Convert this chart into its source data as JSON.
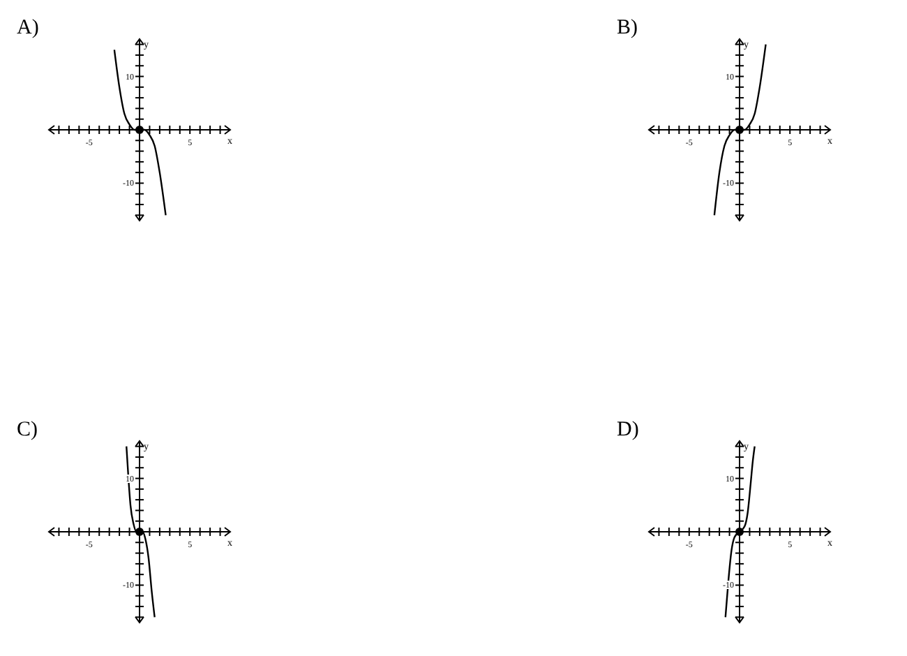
{
  "chart_data": [
    {
      "type": "line",
      "title": "A)",
      "xlabel": "x",
      "ylabel": "y",
      "xlim": [
        -9,
        9
      ],
      "ylim": [
        -17,
        17
      ],
      "xticks": [
        {
          "value": -8,
          "label": null
        },
        {
          "value": -7,
          "label": null
        },
        {
          "value": -6,
          "label": null
        },
        {
          "value": -5,
          "label": "-5"
        },
        {
          "value": -4,
          "label": null
        },
        {
          "value": -3,
          "label": null
        },
        {
          "value": -2,
          "label": null
        },
        {
          "value": -1,
          "label": null
        },
        {
          "value": 1,
          "label": null
        },
        {
          "value": 2,
          "label": null
        },
        {
          "value": 3,
          "label": null
        },
        {
          "value": 4,
          "label": null
        },
        {
          "value": 5,
          "label": "5"
        },
        {
          "value": 6,
          "label": null
        },
        {
          "value": 7,
          "label": null
        },
        {
          "value": 8,
          "label": null
        }
      ],
      "yticks": [
        {
          "value": -16,
          "label": null
        },
        {
          "value": -14,
          "label": null
        },
        {
          "value": -12,
          "label": null
        },
        {
          "value": -10,
          "label": "-10"
        },
        {
          "value": -8,
          "label": null
        },
        {
          "value": -6,
          "label": null
        },
        {
          "value": -4,
          "label": null
        },
        {
          "value": -2,
          "label": null
        },
        {
          "value": 2,
          "label": null
        },
        {
          "value": 4,
          "label": null
        },
        {
          "value": 6,
          "label": null
        },
        {
          "value": 8,
          "label": null
        },
        {
          "value": 10,
          "label": "10"
        },
        {
          "value": 12,
          "label": null
        },
        {
          "value": 14,
          "label": null
        },
        {
          "value": 16,
          "label": null
        }
      ],
      "grid": false,
      "series": [
        {
          "color": "#000000",
          "x": [
            -2.5,
            -2,
            -1.5,
            -1,
            -0.5,
            0,
            0.5,
            1,
            1.5,
            2,
            2.6
          ],
          "values": [
            15,
            8,
            3,
            1,
            0,
            0,
            0,
            -1,
            -3,
            -8,
            -16
          ]
        },
        {
          "type": "scatter",
          "color": "#000000",
          "x": [
            0
          ],
          "values": [
            0
          ]
        }
      ]
    },
    {
      "type": "line",
      "title": "B)",
      "xlabel": "x",
      "ylabel": "y",
      "xlim": [
        -9,
        9
      ],
      "ylim": [
        -17,
        17
      ],
      "xticks": [
        {
          "value": -8,
          "label": null
        },
        {
          "value": -7,
          "label": null
        },
        {
          "value": -6,
          "label": null
        },
        {
          "value": -5,
          "label": "-5"
        },
        {
          "value": -4,
          "label": null
        },
        {
          "value": -3,
          "label": null
        },
        {
          "value": -2,
          "label": null
        },
        {
          "value": -1,
          "label": null
        },
        {
          "value": 1,
          "label": null
        },
        {
          "value": 2,
          "label": null
        },
        {
          "value": 3,
          "label": null
        },
        {
          "value": 4,
          "label": null
        },
        {
          "value": 5,
          "label": "5"
        },
        {
          "value": 6,
          "label": null
        },
        {
          "value": 7,
          "label": null
        },
        {
          "value": 8,
          "label": null
        }
      ],
      "yticks": [
        {
          "value": -16,
          "label": null
        },
        {
          "value": -14,
          "label": null
        },
        {
          "value": -12,
          "label": null
        },
        {
          "value": -10,
          "label": "-10"
        },
        {
          "value": -8,
          "label": null
        },
        {
          "value": -6,
          "label": null
        },
        {
          "value": -4,
          "label": null
        },
        {
          "value": -2,
          "label": null
        },
        {
          "value": 2,
          "label": null
        },
        {
          "value": 4,
          "label": null
        },
        {
          "value": 6,
          "label": null
        },
        {
          "value": 8,
          "label": null
        },
        {
          "value": 10,
          "label": "10"
        },
        {
          "value": 12,
          "label": null
        },
        {
          "value": 14,
          "label": null
        },
        {
          "value": 16,
          "label": null
        }
      ],
      "grid": false,
      "series": [
        {
          "color": "#000000",
          "x": [
            -2.5,
            -2,
            -1.5,
            -1,
            -0.5,
            0,
            0.5,
            1,
            1.5,
            2,
            2.6
          ],
          "values": [
            -16,
            -8,
            -3,
            -1,
            0,
            0,
            0,
            1,
            3,
            8,
            16
          ]
        },
        {
          "type": "scatter",
          "color": "#000000",
          "x": [
            0
          ],
          "values": [
            0
          ]
        }
      ]
    },
    {
      "type": "line",
      "title": "C)",
      "xlabel": "x",
      "ylabel": "y",
      "xlim": [
        -9,
        9
      ],
      "ylim": [
        -17,
        17
      ],
      "xticks": [
        {
          "value": -8,
          "label": null
        },
        {
          "value": -7,
          "label": null
        },
        {
          "value": -6,
          "label": null
        },
        {
          "value": -5,
          "label": "-5"
        },
        {
          "value": -4,
          "label": null
        },
        {
          "value": -3,
          "label": null
        },
        {
          "value": -2,
          "label": null
        },
        {
          "value": -1,
          "label": null
        },
        {
          "value": 1,
          "label": null
        },
        {
          "value": 2,
          "label": null
        },
        {
          "value": 3,
          "label": null
        },
        {
          "value": 4,
          "label": null
        },
        {
          "value": 5,
          "label": "5"
        },
        {
          "value": 6,
          "label": null
        },
        {
          "value": 7,
          "label": null
        },
        {
          "value": 8,
          "label": null
        }
      ],
      "yticks": [
        {
          "value": -16,
          "label": null
        },
        {
          "value": -14,
          "label": null
        },
        {
          "value": -12,
          "label": null
        },
        {
          "value": -10,
          "label": "-10"
        },
        {
          "value": -8,
          "label": null
        },
        {
          "value": -6,
          "label": null
        },
        {
          "value": -4,
          "label": null
        },
        {
          "value": -2,
          "label": null
        },
        {
          "value": 2,
          "label": null
        },
        {
          "value": 4,
          "label": null
        },
        {
          "value": 6,
          "label": null
        },
        {
          "value": 8,
          "label": null
        },
        {
          "value": 10,
          "label": "10"
        },
        {
          "value": 12,
          "label": null
        },
        {
          "value": 14,
          "label": null
        },
        {
          "value": 16,
          "label": null
        }
      ],
      "grid": false,
      "series": [
        {
          "color": "#000000",
          "x": [
            -1.3,
            -1.1,
            -0.9,
            -0.6,
            -0.3,
            0,
            0.3,
            0.6,
            0.9,
            1.2,
            1.5
          ],
          "values": [
            16,
            10,
            5,
            1.5,
            0,
            0,
            0,
            -1.5,
            -5,
            -11,
            -16
          ]
        },
        {
          "type": "scatter",
          "color": "#000000",
          "x": [
            0
          ],
          "values": [
            0
          ]
        }
      ]
    },
    {
      "type": "line",
      "title": "D)",
      "xlabel": "x",
      "ylabel": "y",
      "xlim": [
        -9,
        9
      ],
      "ylim": [
        -17,
        17
      ],
      "xticks": [
        {
          "value": -8,
          "label": null
        },
        {
          "value": -7,
          "label": null
        },
        {
          "value": -6,
          "label": null
        },
        {
          "value": -5,
          "label": "-5"
        },
        {
          "value": -4,
          "label": null
        },
        {
          "value": -3,
          "label": null
        },
        {
          "value": -2,
          "label": null
        },
        {
          "value": -1,
          "label": null
        },
        {
          "value": 1,
          "label": null
        },
        {
          "value": 2,
          "label": null
        },
        {
          "value": 3,
          "label": null
        },
        {
          "value": 4,
          "label": null
        },
        {
          "value": 5,
          "label": "5"
        },
        {
          "value": 6,
          "label": null
        },
        {
          "value": 7,
          "label": null
        },
        {
          "value": 8,
          "label": null
        }
      ],
      "yticks": [
        {
          "value": -16,
          "label": null
        },
        {
          "value": -14,
          "label": null
        },
        {
          "value": -12,
          "label": null
        },
        {
          "value": -10,
          "label": "-10"
        },
        {
          "value": -8,
          "label": null
        },
        {
          "value": -6,
          "label": null
        },
        {
          "value": -4,
          "label": null
        },
        {
          "value": -2,
          "label": null
        },
        {
          "value": 2,
          "label": null
        },
        {
          "value": 4,
          "label": null
        },
        {
          "value": 6,
          "label": null
        },
        {
          "value": 8,
          "label": null
        },
        {
          "value": 10,
          "label": "10"
        },
        {
          "value": 12,
          "label": null
        },
        {
          "value": 14,
          "label": null
        },
        {
          "value": 16,
          "label": null
        }
      ],
      "grid": false,
      "series": [
        {
          "color": "#000000",
          "x": [
            -1.4,
            -1.1,
            -0.8,
            -0.5,
            0,
            0.5,
            0.8,
            1.1,
            1.3,
            1.5
          ],
          "values": [
            -16,
            -9,
            -3.5,
            -1,
            0,
            1,
            3.5,
            9,
            13,
            16
          ]
        },
        {
          "type": "scatter",
          "color": "#000000",
          "x": [
            0
          ],
          "values": [
            0
          ]
        }
      ]
    }
  ]
}
